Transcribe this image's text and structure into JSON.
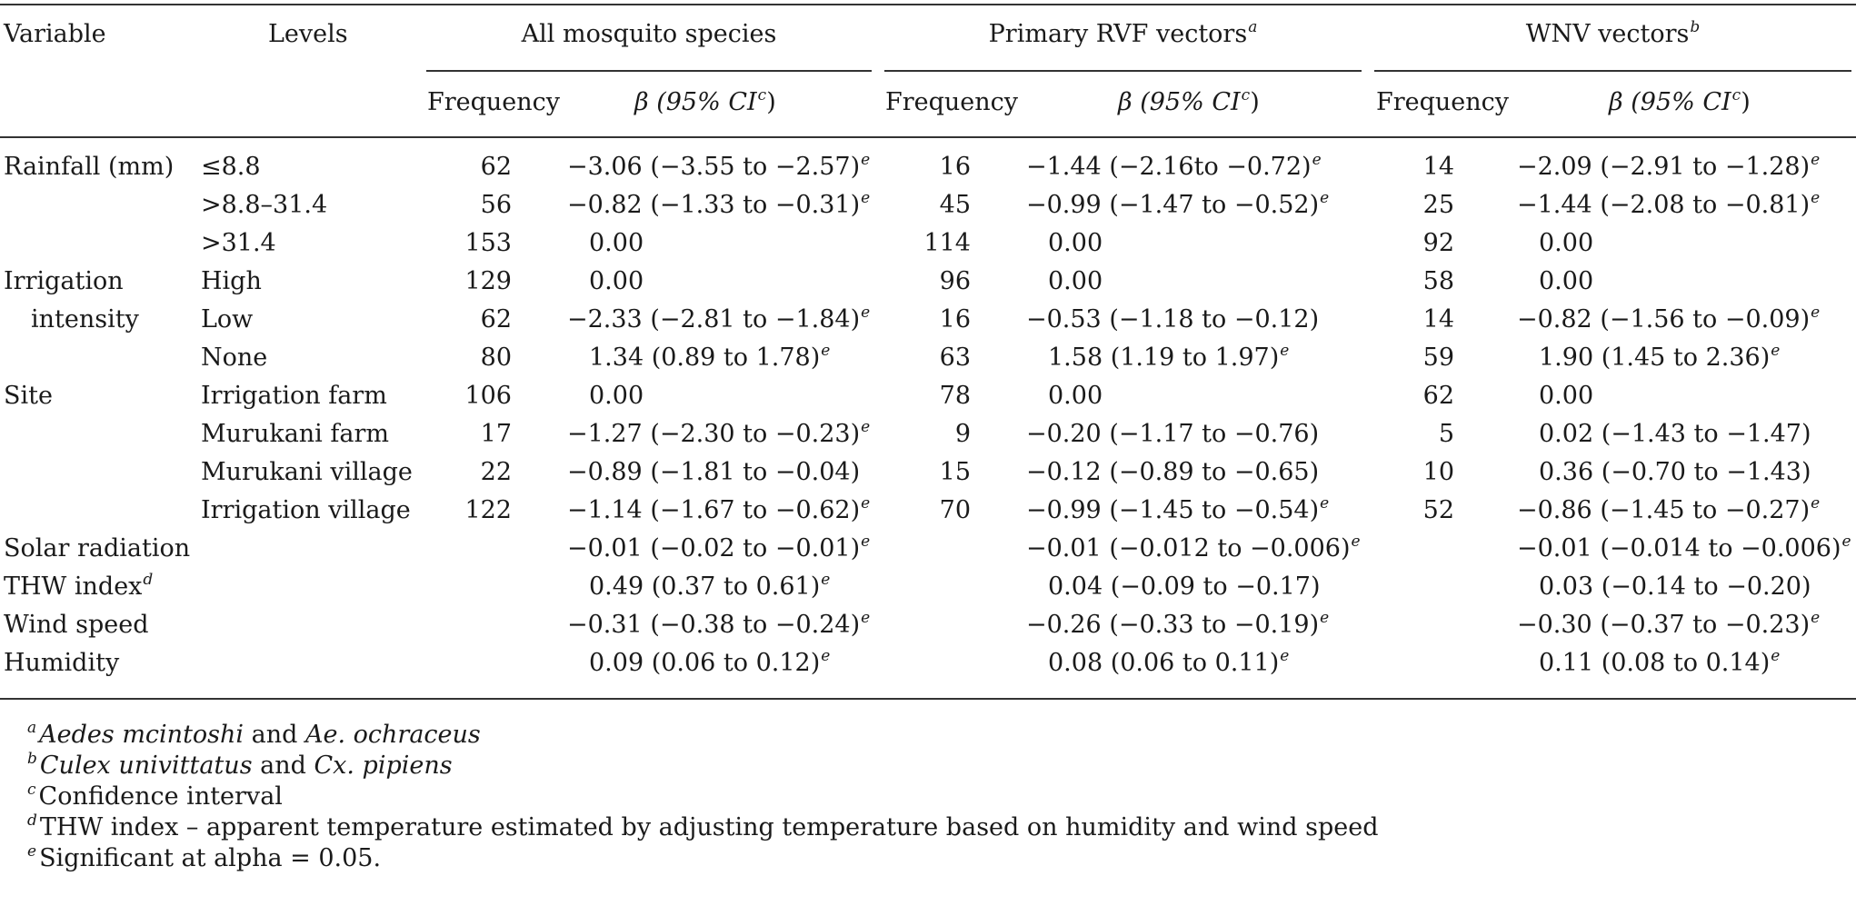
{
  "headers": {
    "variable": "Variable",
    "levels": "Levels",
    "groups": [
      {
        "label": "All mosquito species",
        "sup": ""
      },
      {
        "label": "Primary RVF vectors",
        "sup": "a"
      },
      {
        "label": "WNV vectors",
        "sup": "b"
      }
    ],
    "frequency": "Frequency",
    "beta": "β (95% CI",
    "beta_sup": "c",
    "beta_close": ")"
  },
  "rows": [
    {
      "variable": "Rainfall (mm)",
      "level": "≤8.8",
      "f1": "62",
      "b1": "−3.06 (−3.55 to −2.57)",
      "s1": "e",
      "f2": "16",
      "b2": "−1.44 (−2.16to −0.72)",
      "s2": "e",
      "f3": "14",
      "b3": "−2.09 (−2.91 to −1.28)",
      "s3": "e"
    },
    {
      "variable": "",
      "level": ">8.8–31.4",
      "f1": "56",
      "b1": "−0.82 (−1.33 to −0.31)",
      "s1": "e",
      "f2": "45",
      "b2": "−0.99 (−1.47 to −0.52)",
      "s2": "e",
      "f3": "25",
      "b3": "−1.44 (−2.08 to −0.81)",
      "s3": "e"
    },
    {
      "variable": "",
      "level": ">31.4",
      "f1": "153",
      "b1": "0.00",
      "s1": "",
      "f2": "114",
      "b2": "0.00",
      "s2": "",
      "f3": "92",
      "b3": "0.00",
      "s3": ""
    },
    {
      "variable": "Irrigation",
      "level": "High",
      "f1": "129",
      "b1": "0.00",
      "s1": "",
      "f2": "96",
      "b2": "0.00",
      "s2": "",
      "f3": "58",
      "b3": "0.00",
      "s3": ""
    },
    {
      "variable": "intensity",
      "level": "Low",
      "indent": true,
      "f1": "62",
      "b1": "−2.33 (−2.81 to −1.84)",
      "s1": "e",
      "f2": "16",
      "b2": "−0.53 (−1.18 to −0.12)",
      "s2": "",
      "f3": "14",
      "b3": "−0.82 (−1.56 to −0.09)",
      "s3": "e"
    },
    {
      "variable": "",
      "level": "None",
      "f1": "80",
      "b1": "1.34 (0.89 to 1.78)",
      "s1": "e",
      "f2": "63",
      "b2": "1.58 (1.19 to 1.97)",
      "s2": "e",
      "f3": "59",
      "b3": "1.90 (1.45 to 2.36)",
      "s3": "e"
    },
    {
      "variable": "Site",
      "level": "Irrigation farm",
      "f1": "106",
      "b1": "0.00",
      "s1": "",
      "f2": "78",
      "b2": "0.00",
      "s2": "",
      "f3": "62",
      "b3": "0.00",
      "s3": ""
    },
    {
      "variable": "",
      "level": "Murukani farm",
      "f1": "17",
      "b1": "−1.27 (−2.30 to −0.23)",
      "s1": "e",
      "f2": "9",
      "b2": "−0.20 (−1.17 to −0.76)",
      "s2": "",
      "f3": "5",
      "b3": "0.02 (−1.43 to −1.47)",
      "s3": ""
    },
    {
      "variable": "",
      "level": "Murukani village",
      "f1": "22",
      "b1": "−0.89 (−1.81 to −0.04)",
      "s1": "",
      "f2": "15",
      "b2": "−0.12 (−0.89 to −0.65)",
      "s2": "",
      "f3": "10",
      "b3": "0.36 (−0.70 to −1.43)",
      "s3": ""
    },
    {
      "variable": "",
      "level": "Irrigation village",
      "f1": "122",
      "b1": "−1.14 (−1.67 to −0.62)",
      "s1": "e",
      "f2": "70",
      "b2": "−0.99 (−1.45 to −0.54)",
      "s2": "e",
      "f3": "52",
      "b3": "−0.86 (−1.45 to −0.27)",
      "s3": "e"
    },
    {
      "variable": "Solar radiation",
      "level": "",
      "f1": "",
      "b1": "−0.01 (−0.02 to −0.01)",
      "s1": "e",
      "f2": "",
      "b2": "−0.01 (−0.012 to −0.006)",
      "s2": "e",
      "f3": "",
      "b3": "−0.01 (−0.014 to −0.006)",
      "s3": "e"
    },
    {
      "variable": "THW index",
      "variable_sup": "d",
      "level": "",
      "f1": "",
      "b1": "0.49 (0.37 to 0.61)",
      "s1": "e",
      "f2": "",
      "b2": "0.04 (−0.09 to −0.17)",
      "s2": "",
      "f3": "",
      "b3": "0.03 (−0.14 to −0.20)",
      "s3": ""
    },
    {
      "variable": "Wind speed",
      "level": "",
      "f1": "",
      "b1": "−0.31 (−0.38 to −0.24)",
      "s1": "e",
      "f2": "",
      "b2": "−0.26 (−0.33 to −0.19)",
      "s2": "e",
      "f3": "",
      "b3": "−0.30 (−0.37 to −0.23)",
      "s3": "e"
    },
    {
      "variable": "Humidity",
      "level": "",
      "f1": "",
      "b1": "0.09 (0.06 to 0.12)",
      "s1": "e",
      "f2": "",
      "b2": "0.08 (0.06 to 0.11)",
      "s2": "e",
      "f3": "",
      "b3": "0.11 (0.08 to 0.14)",
      "s3": "e"
    }
  ],
  "footnotes": [
    {
      "mark": "a",
      "italic1": "Aedes mcintoshi",
      "mid": " and ",
      "italic2": "Ae. ochraceus",
      "rest": ""
    },
    {
      "mark": "b",
      "italic1": "Culex univittatus",
      "mid": " and ",
      "italic2": "Cx. pipiens",
      "rest": ""
    },
    {
      "mark": "c",
      "italic1": "",
      "mid": "",
      "italic2": "",
      "rest": "Confidence interval"
    },
    {
      "mark": "d",
      "italic1": "",
      "mid": "",
      "italic2": "",
      "rest": "THW index – apparent temperature estimated by adjusting temperature based on humidity and wind speed"
    },
    {
      "mark": "e",
      "italic1": "",
      "mid": "",
      "italic2": "",
      "rest": "Significant at alpha = 0.05."
    }
  ]
}
